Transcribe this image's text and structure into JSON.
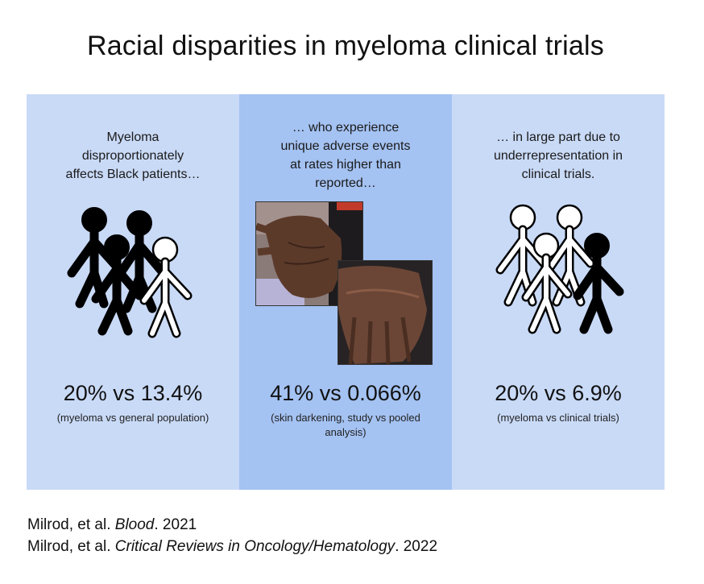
{
  "title": "Racial disparities in myeloma clinical trials",
  "panels": [
    {
      "caption": "Myeloma\ndisproportionately\naffects Black patients…",
      "stat": "20% vs 13.4%",
      "note": "(myeloma vs general population)",
      "figure": "stick-figures-black-majority-icon"
    },
    {
      "caption": "… who experience\nunique adverse events\nat rates higher than\nreported…",
      "stat": "41% vs 0.066%",
      "note": "(skin darkening, study vs pooled analysis)",
      "figure": "hand-skin-darkening-photos"
    },
    {
      "caption": "… in large part due to\nunderrepresentation in\nclinical trials.",
      "stat": "20% vs 6.9%",
      "note": "(myeloma vs clinical trials)",
      "figure": "stick-figures-white-majority-icon"
    }
  ],
  "colors": {
    "panel_light": "#c9daf7",
    "panel_mid": "#a4c2f2"
  },
  "references": [
    {
      "prefix": "Milrod, et al. ",
      "journal": "Blood",
      "suffix": ". 2021"
    },
    {
      "prefix": "Milrod, et al. ",
      "journal": "Critical Reviews in Oncology/Hematology",
      "suffix": ". 2022"
    }
  ]
}
